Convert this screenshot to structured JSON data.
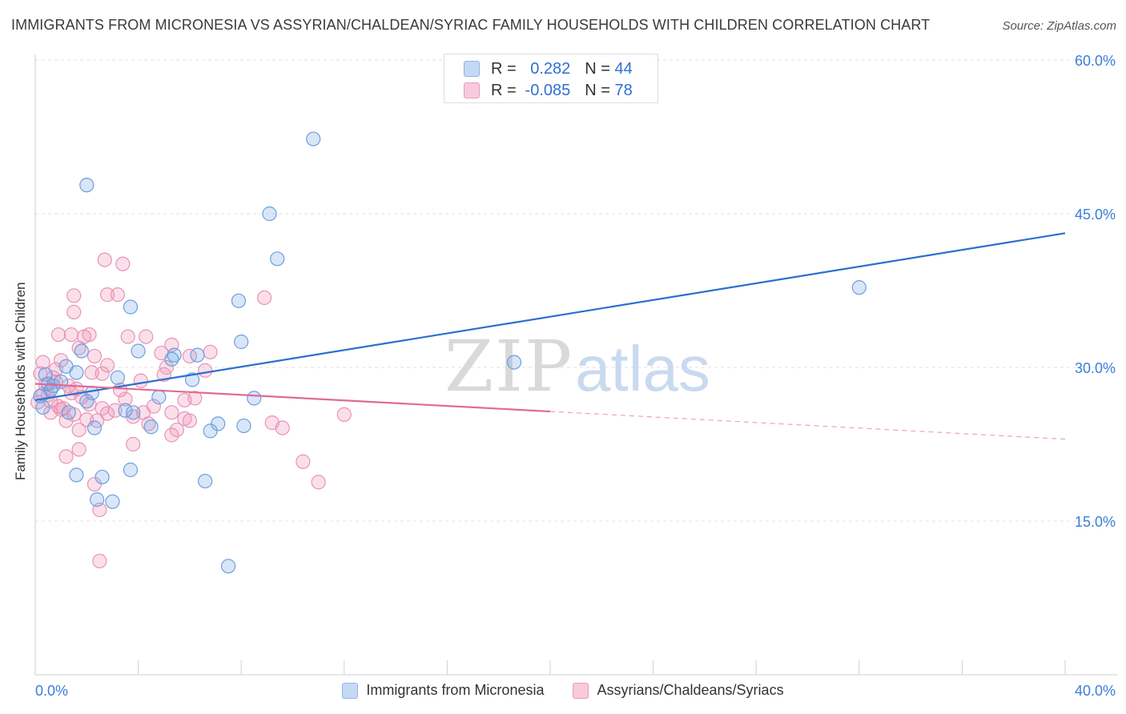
{
  "title": "IMMIGRANTS FROM MICRONESIA VS ASSYRIAN/CHALDEAN/SYRIAC FAMILY HOUSEHOLDS WITH CHILDREN CORRELATION CHART",
  "source": "Source: ZipAtlas.com",
  "watermark": {
    "part1": "ZIP",
    "part2": "atlas"
  },
  "legend_top": {
    "rows": [
      {
        "r_label": "R =",
        "r_value": "0.282",
        "n_label": "N =",
        "n_value": "44"
      },
      {
        "r_label": "R =",
        "r_value": "-0.085",
        "n_label": "N =",
        "n_value": "78"
      }
    ]
  },
  "chart_data": {
    "type": "scatter",
    "title": "IMMIGRANTS FROM MICRONESIA VS ASSYRIAN/CHALDEAN/SYRIAC FAMILY HOUSEHOLDS WITH CHILDREN CORRELATION CHART",
    "xlabel": "",
    "ylabel": "Family Households with Children",
    "xlim": [
      0,
      40
    ],
    "ylim": [
      0,
      60
    ],
    "x_tick_labels": [
      "0.0%",
      "40.0%"
    ],
    "y_ticks": [
      15,
      30,
      45,
      60
    ],
    "y_tick_labels": [
      "15.0%",
      "30.0%",
      "45.0%",
      "60.0%"
    ],
    "grid": true,
    "legend_position": "bottom",
    "colors": {
      "blue": "#3b7dd8",
      "pink": "#e8709a",
      "blue_line": "#2b6fcf",
      "pink_line": "#e06a95"
    },
    "series": [
      {
        "name": "Immigrants from Micronesia",
        "color": "#3b7dd8",
        "trend": {
          "x0": 0,
          "y0": 26.8,
          "x1": 40,
          "y1": 43.1,
          "dashed_from": 40
        },
        "points": [
          [
            10.8,
            52.3
          ],
          [
            2.0,
            47.8
          ],
          [
            9.1,
            45.0
          ],
          [
            9.4,
            40.6
          ],
          [
            32.0,
            37.8
          ],
          [
            7.9,
            36.5
          ],
          [
            3.7,
            35.9
          ],
          [
            8.0,
            32.5
          ],
          [
            1.8,
            31.6
          ],
          [
            4.0,
            31.6
          ],
          [
            5.4,
            31.2
          ],
          [
            6.3,
            31.2
          ],
          [
            5.3,
            30.8
          ],
          [
            18.6,
            30.5
          ],
          [
            1.2,
            30.1
          ],
          [
            1.6,
            29.5
          ],
          [
            0.4,
            29.3
          ],
          [
            3.2,
            29.0
          ],
          [
            6.1,
            28.8
          ],
          [
            0.5,
            28.4
          ],
          [
            0.6,
            27.8
          ],
          [
            0.2,
            27.2
          ],
          [
            2.2,
            27.5
          ],
          [
            4.8,
            27.1
          ],
          [
            8.5,
            27.0
          ],
          [
            2.0,
            26.7
          ],
          [
            0.3,
            26.1
          ],
          [
            3.5,
            25.8
          ],
          [
            1.3,
            25.6
          ],
          [
            3.8,
            25.6
          ],
          [
            4.5,
            24.2
          ],
          [
            7.1,
            24.5
          ],
          [
            8.1,
            24.3
          ],
          [
            2.3,
            24.1
          ],
          [
            6.8,
            23.8
          ],
          [
            3.7,
            20.0
          ],
          [
            1.6,
            19.5
          ],
          [
            2.6,
            19.3
          ],
          [
            6.6,
            18.9
          ],
          [
            2.4,
            17.1
          ],
          [
            3.0,
            16.9
          ],
          [
            7.5,
            10.6
          ],
          [
            0.7,
            28.2
          ],
          [
            1.0,
            28.6
          ]
        ]
      },
      {
        "name": "Assyrians/Chaldeans/Syriacs",
        "color": "#e8709a",
        "trend": {
          "x0": 0,
          "y0": 28.4,
          "x1": 40,
          "y1": 23.0,
          "dashed_from": 20
        },
        "points": [
          [
            2.7,
            40.5
          ],
          [
            3.4,
            40.1
          ],
          [
            1.5,
            37.0
          ],
          [
            2.8,
            37.1
          ],
          [
            3.2,
            37.1
          ],
          [
            8.9,
            36.8
          ],
          [
            1.5,
            35.4
          ],
          [
            0.9,
            33.2
          ],
          [
            1.4,
            33.2
          ],
          [
            1.9,
            33.0
          ],
          [
            2.1,
            33.2
          ],
          [
            3.6,
            33.0
          ],
          [
            4.3,
            33.0
          ],
          [
            5.3,
            32.2
          ],
          [
            1.7,
            31.9
          ],
          [
            6.8,
            31.5
          ],
          [
            4.9,
            31.4
          ],
          [
            2.3,
            31.1
          ],
          [
            6.0,
            31.1
          ],
          [
            0.3,
            30.5
          ],
          [
            1.0,
            30.7
          ],
          [
            2.8,
            30.2
          ],
          [
            5.1,
            30.0
          ],
          [
            6.6,
            29.7
          ],
          [
            0.2,
            29.4
          ],
          [
            0.7,
            29.0
          ],
          [
            2.2,
            29.5
          ],
          [
            5.0,
            29.3
          ],
          [
            0.8,
            28.6
          ],
          [
            4.1,
            28.7
          ],
          [
            0.4,
            28.3
          ],
          [
            1.3,
            28.2
          ],
          [
            1.6,
            27.9
          ],
          [
            0.5,
            27.3
          ],
          [
            1.8,
            27.1
          ],
          [
            3.5,
            26.9
          ],
          [
            5.8,
            26.8
          ],
          [
            0.1,
            26.6
          ],
          [
            0.6,
            26.7
          ],
          [
            2.1,
            26.4
          ],
          [
            1.1,
            26.0
          ],
          [
            2.6,
            26.0
          ],
          [
            3.1,
            25.8
          ],
          [
            4.2,
            25.6
          ],
          [
            5.3,
            25.6
          ],
          [
            12.0,
            25.4
          ],
          [
            0.6,
            25.6
          ],
          [
            1.5,
            25.4
          ],
          [
            2.8,
            25.5
          ],
          [
            3.8,
            25.2
          ],
          [
            5.8,
            25.0
          ],
          [
            1.2,
            24.8
          ],
          [
            2.0,
            24.9
          ],
          [
            6.0,
            24.8
          ],
          [
            9.2,
            24.6
          ],
          [
            4.4,
            24.5
          ],
          [
            9.6,
            24.1
          ],
          [
            1.7,
            23.9
          ],
          [
            5.5,
            23.9
          ],
          [
            5.3,
            23.4
          ],
          [
            3.8,
            22.5
          ],
          [
            1.7,
            22.0
          ],
          [
            1.2,
            21.3
          ],
          [
            10.4,
            20.8
          ],
          [
            2.3,
            18.6
          ],
          [
            11.0,
            18.8
          ],
          [
            2.5,
            16.1
          ],
          [
            2.5,
            11.1
          ],
          [
            0.9,
            26.2
          ],
          [
            1.4,
            27.5
          ],
          [
            2.6,
            29.4
          ],
          [
            3.3,
            27.8
          ],
          [
            4.6,
            26.2
          ],
          [
            6.2,
            27.0
          ],
          [
            0.3,
            27.4
          ],
          [
            1.0,
            25.9
          ],
          [
            2.4,
            24.8
          ],
          [
            0.8,
            29.8
          ]
        ]
      }
    ]
  }
}
